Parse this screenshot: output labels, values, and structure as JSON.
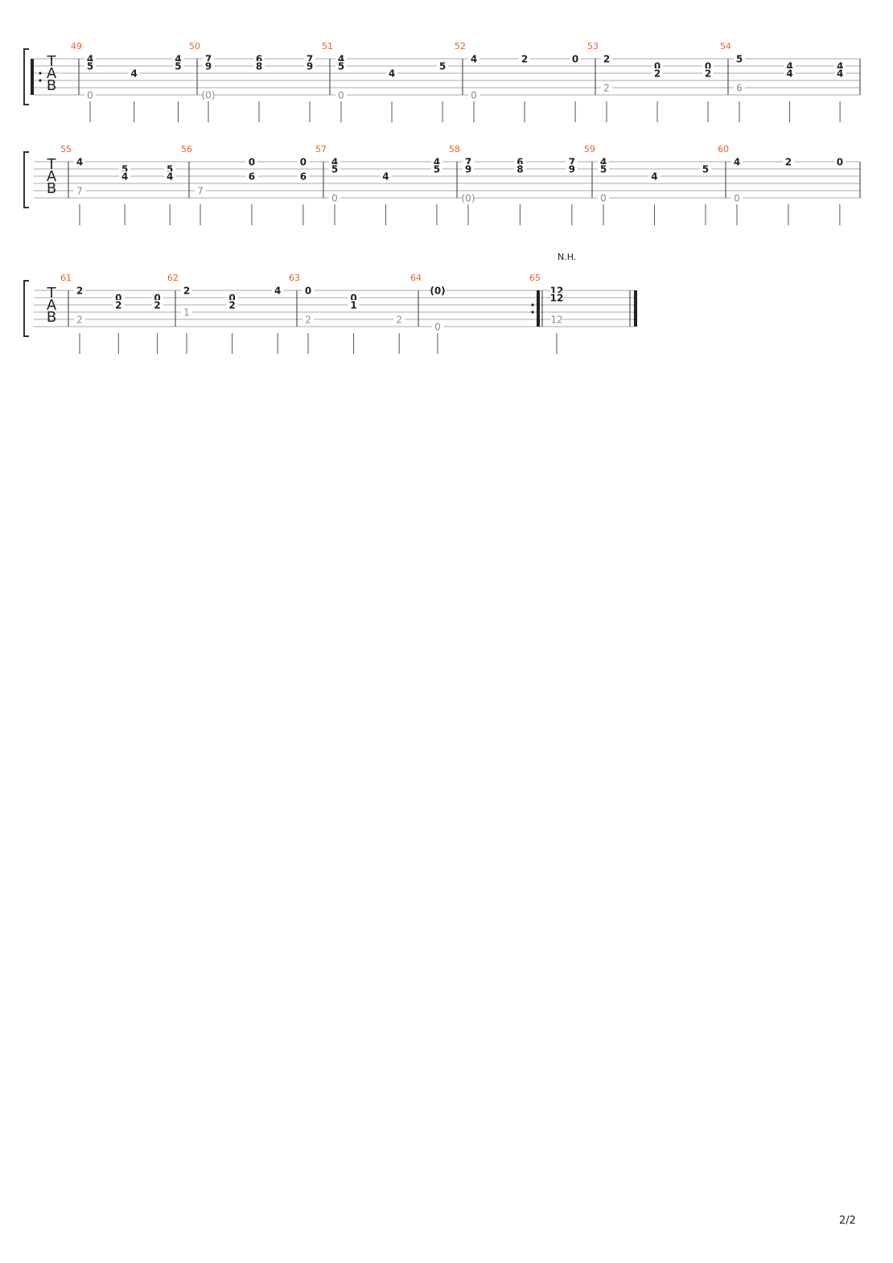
{
  "page": {
    "indicator": "2/2"
  },
  "staff": {
    "clef_letters": [
      "T",
      "A",
      "B"
    ],
    "colors": {
      "measure_number": "#e8632a",
      "fret_main": "#222222",
      "fret_bass": "#8c8c8c",
      "line": "#aaaaaa"
    }
  },
  "annotations": {
    "natural_harmonic": "N.H."
  },
  "systems": [
    {
      "measures": [
        {
          "number": "49",
          "frets": [
            [
              "4",
              "5",
              "",
              "",
              "",
              "0"
            ],
            [
              "",
              "",
              "4",
              "",
              "",
              ""
            ],
            [
              "4",
              "5",
              "",
              "",
              "",
              ""
            ]
          ],
          "repeat_start": true
        },
        {
          "number": "50",
          "frets": [
            [
              "7",
              "9",
              "",
              "",
              "",
              "(0)"
            ],
            [
              "6",
              "8",
              "",
              "",
              "",
              ""
            ],
            [
              "7",
              "9",
              "",
              "",
              "",
              ""
            ]
          ]
        },
        {
          "number": "51",
          "frets": [
            [
              "4",
              "5",
              "",
              "",
              "",
              "0"
            ],
            [
              "",
              "",
              "4",
              "",
              "",
              ""
            ],
            [
              "",
              "5",
              "",
              "",
              "",
              ""
            ]
          ]
        },
        {
          "number": "52",
          "frets": [
            [
              "4",
              "",
              "",
              "",
              "",
              "0"
            ],
            [
              "2",
              "",
              "",
              "",
              "",
              ""
            ],
            [
              "0",
              "",
              "",
              "",
              "",
              ""
            ]
          ]
        },
        {
          "number": "53",
          "frets": [
            [
              "2",
              "",
              "",
              "",
              "2",
              ""
            ],
            [
              "",
              "0",
              "2",
              "",
              "",
              ""
            ],
            [
              "",
              "0",
              "2",
              "",
              "",
              ""
            ]
          ]
        },
        {
          "number": "54",
          "frets": [
            [
              "5",
              "",
              "",
              "",
              "6",
              ""
            ],
            [
              "",
              "4",
              "4",
              "",
              "",
              ""
            ],
            [
              "",
              "4",
              "4",
              "",
              "",
              ""
            ]
          ]
        }
      ]
    },
    {
      "measures": [
        {
          "number": "55",
          "frets": [
            [
              "4",
              "",
              "",
              "",
              "7",
              ""
            ],
            [
              "",
              "5",
              "4",
              "",
              "",
              ""
            ],
            [
              "",
              "5",
              "4",
              "",
              "",
              ""
            ]
          ]
        },
        {
          "number": "56",
          "frets": [
            [
              "",
              "",
              "",
              "",
              "7",
              ""
            ],
            [
              "0",
              "",
              "6",
              "",
              "",
              ""
            ],
            [
              "0",
              "",
              "6",
              "",
              "",
              ""
            ]
          ]
        },
        {
          "number": "57",
          "frets": [
            [
              "4",
              "5",
              "",
              "",
              "",
              "0"
            ],
            [
              "",
              "",
              "4",
              "",
              "",
              ""
            ],
            [
              "4",
              "5",
              "",
              "",
              "",
              ""
            ]
          ]
        },
        {
          "number": "58",
          "frets": [
            [
              "7",
              "9",
              "",
              "",
              "",
              "(0)"
            ],
            [
              "6",
              "8",
              "",
              "",
              "",
              ""
            ],
            [
              "7",
              "9",
              "",
              "",
              "",
              ""
            ]
          ]
        },
        {
          "number": "59",
          "frets": [
            [
              "4",
              "5",
              "",
              "",
              "",
              "0"
            ],
            [
              "",
              "",
              "4",
              "",
              "",
              ""
            ],
            [
              "",
              "5",
              "",
              "",
              "",
              ""
            ]
          ]
        },
        {
          "number": "60",
          "frets": [
            [
              "4",
              "",
              "",
              "",
              "",
              "0"
            ],
            [
              "2",
              "",
              "",
              "",
              "",
              ""
            ],
            [
              "0",
              "",
              "",
              "",
              "",
              ""
            ]
          ]
        }
      ]
    },
    {
      "measures": [
        {
          "number": "61",
          "frets": [
            [
              "2",
              "",
              "",
              "",
              "2",
              ""
            ],
            [
              "",
              "0",
              "2",
              "",
              "",
              ""
            ],
            [
              "",
              "0",
              "2",
              "",
              "",
              ""
            ]
          ]
        },
        {
          "number": "62",
          "frets": [
            [
              "2",
              "",
              "",
              "1",
              "",
              ""
            ],
            [
              "",
              "0",
              "2",
              "",
              "",
              ""
            ],
            [
              "4",
              "",
              "",
              "",
              "",
              ""
            ]
          ]
        },
        {
          "number": "63",
          "frets": [
            [
              "0",
              "",
              "",
              "",
              "2",
              ""
            ],
            [
              "",
              "0",
              "1",
              "",
              "",
              ""
            ],
            [
              "",
              "",
              "",
              "",
              "2",
              ""
            ]
          ]
        },
        {
          "number": "64",
          "frets": [
            [
              "(0)",
              "",
              "",
              "",
              "",
              "0"
            ]
          ]
        },
        {
          "number": "65",
          "frets": [
            [
              "12",
              "12",
              "",
              "",
              "12",
              ""
            ]
          ],
          "repeat_end": true,
          "final": true
        }
      ]
    }
  ]
}
